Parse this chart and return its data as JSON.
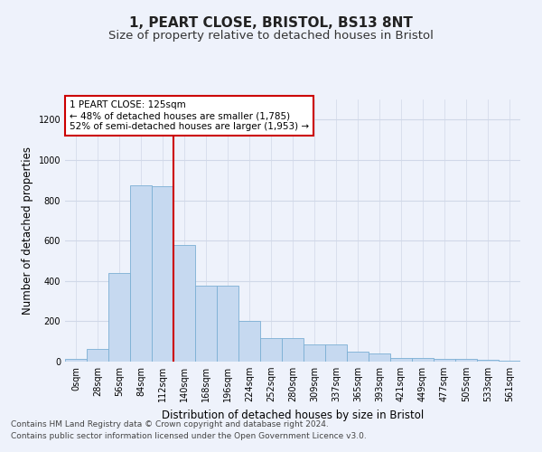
{
  "title": "1, PEART CLOSE, BRISTOL, BS13 8NT",
  "subtitle": "Size of property relative to detached houses in Bristol",
  "xlabel": "Distribution of detached houses by size in Bristol",
  "ylabel": "Number of detached properties",
  "bar_color": "#c6d9f0",
  "bar_edge_color": "#7bafd4",
  "bar_heights": [
    15,
    65,
    440,
    875,
    870,
    580,
    375,
    375,
    200,
    115,
    115,
    85,
    85,
    50,
    40,
    20,
    20,
    15,
    15,
    10,
    5
  ],
  "bin_labels": [
    "0sqm",
    "28sqm",
    "56sqm",
    "84sqm",
    "112sqm",
    "140sqm",
    "168sqm",
    "196sqm",
    "224sqm",
    "252sqm",
    "280sqm",
    "309sqm",
    "337sqm",
    "365sqm",
    "393sqm",
    "421sqm",
    "449sqm",
    "477sqm",
    "505sqm",
    "533sqm",
    "561sqm"
  ],
  "vline_x": 4.5,
  "vline_color": "#cc0000",
  "annotation_text": "1 PEART CLOSE: 125sqm\n← 48% of detached houses are smaller (1,785)\n52% of semi-detached houses are larger (1,953) →",
  "annotation_box_color": "#ffffff",
  "annotation_box_edge": "#cc0000",
  "ylim": [
    0,
    1300
  ],
  "yticks": [
    0,
    200,
    400,
    600,
    800,
    1000,
    1200
  ],
  "footer1": "Contains HM Land Registry data © Crown copyright and database right 2024.",
  "footer2": "Contains public sector information licensed under the Open Government Licence v3.0.",
  "bg_color": "#eef2fb",
  "grid_color": "#d0d8e8",
  "title_fontsize": 11,
  "subtitle_fontsize": 9.5,
  "axis_label_fontsize": 8.5,
  "tick_fontsize": 7,
  "footer_fontsize": 6.5,
  "annotation_fontsize": 7.5
}
